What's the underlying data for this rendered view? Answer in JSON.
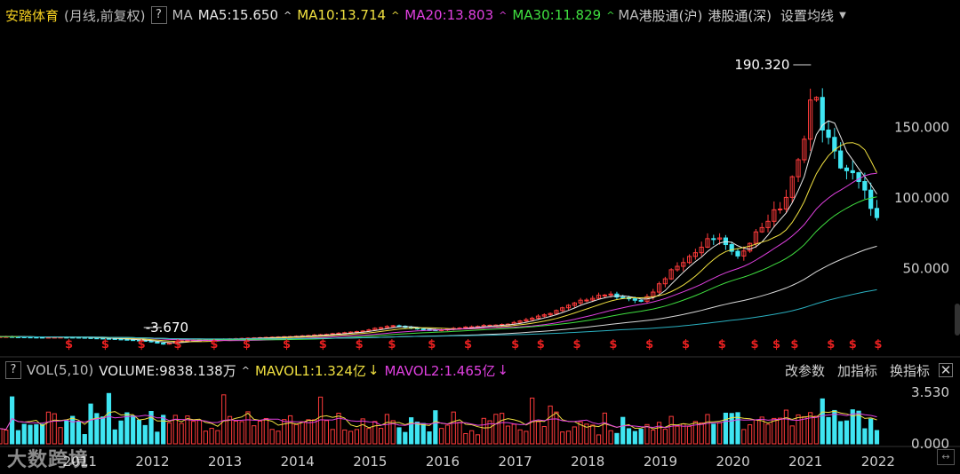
{
  "header": {
    "stock_name": "安踏体育",
    "period": "(月线,前复权)",
    "help": "?",
    "ma_label": "MA",
    "ma5": "MA5:15.650",
    "ma10": "MA10:13.714",
    "ma20": "MA20:13.803",
    "ma30": "MA30:11.829",
    "ma_trunc": "MA",
    "connect_sh": "港股通(沪)",
    "connect_sz": "港股通(深)",
    "ma_settings": "设置均线",
    "arrow": "^"
  },
  "volume_header": {
    "help": "?",
    "vol_label": "VOL(5,10)",
    "volume": "VOLUME:9838.138万",
    "mavol1": "MAVOL1:1.324亿",
    "mavol2": "MAVOL2:1.465亿",
    "arrow_up": "^",
    "arrow_down": "↓",
    "change_params": "改参数",
    "add_indicator": "加指标",
    "switch_indicator": "换指标",
    "close": "✕"
  },
  "watermark": "大数跨境",
  "colors": {
    "up": "#ff3b3b",
    "down": "#3fe5f2",
    "ma5": "#e8e8e8",
    "ma10": "#f0e040",
    "ma20": "#e040e0",
    "ma30": "#40e040",
    "long_ma": "#d8d8d8",
    "ma250": "#2ab0c0",
    "dividend": "#e82020"
  },
  "chart_data": {
    "type": "candlestick",
    "title": "安踏体育 (月线,前复权)",
    "x_ticks": [
      "2011",
      "2012",
      "2013",
      "2014",
      "2015",
      "2016",
      "2017",
      "2018",
      "2019",
      "2020",
      "2021",
      "2022"
    ],
    "y_ticks": [
      50.0,
      100.0,
      150.0
    ],
    "y_range": [
      -8,
      215
    ],
    "annotations": [
      {
        "label": "190.320",
        "value": 190.32,
        "year": 2021.2
      },
      {
        "label": "-3.670",
        "value": -3.67,
        "year": 2012.25
      }
    ],
    "price_anchors": [
      [
        2010.0,
        2.0
      ],
      [
        2010.5,
        1.5
      ],
      [
        2011.0,
        1.5
      ],
      [
        2011.5,
        0.5
      ],
      [
        2012.0,
        -1.0
      ],
      [
        2012.25,
        -3.5
      ],
      [
        2012.5,
        -1.0
      ],
      [
        2013.0,
        0.0
      ],
      [
        2013.5,
        1.0
      ],
      [
        2014.0,
        2.0
      ],
      [
        2014.5,
        3.5
      ],
      [
        2015.0,
        6.0
      ],
      [
        2015.4,
        10.0
      ],
      [
        2015.8,
        7.0
      ],
      [
        2016.0,
        6.5
      ],
      [
        2016.5,
        9.0
      ],
      [
        2017.0,
        11.0
      ],
      [
        2017.5,
        17.0
      ],
      [
        2018.0,
        27.0
      ],
      [
        2018.3,
        32.0
      ],
      [
        2018.6,
        30.0
      ],
      [
        2018.8,
        26.0
      ],
      [
        2019.0,
        33.0
      ],
      [
        2019.3,
        52.0
      ],
      [
        2019.6,
        62.0
      ],
      [
        2019.8,
        72.0
      ],
      [
        2020.0,
        68.0
      ],
      [
        2020.15,
        56.0
      ],
      [
        2020.3,
        68.0
      ],
      [
        2020.6,
        86.0
      ],
      [
        2020.8,
        96.0
      ],
      [
        2021.0,
        125.0
      ],
      [
        2021.1,
        150.0
      ],
      [
        2021.2,
        178.0
      ],
      [
        2021.35,
        148.0
      ],
      [
        2021.55,
        125.0
      ],
      [
        2021.75,
        116.0
      ],
      [
        2021.9,
        105.0
      ],
      [
        2022.0,
        95.0
      ],
      [
        2022.1,
        83.0
      ]
    ],
    "moving_averages": [
      {
        "name": "MA5",
        "value": 15.65
      },
      {
        "name": "MA10",
        "value": 13.714
      },
      {
        "name": "MA20",
        "value": 13.803
      },
      {
        "name": "MA30",
        "value": 11.829
      }
    ],
    "volume": {
      "y_ticks": [
        0.0,
        3.53
      ],
      "last": "VOLUME:9838.138万",
      "mavol1": "1.324亿",
      "mavol2": "1.465亿"
    },
    "dividend_marks": [
      2010.95,
      2011.45,
      2011.95,
      2012.45,
      2012.95,
      2013.4,
      2013.95,
      2014.45,
      2014.95,
      2015.4,
      2015.95,
      2016.45,
      2017.1,
      2017.45,
      2017.95,
      2018.45,
      2018.95,
      2019.45,
      2019.95,
      2020.4,
      2020.7,
      2020.95,
      2021.45,
      2021.75,
      2022.1
    ]
  }
}
